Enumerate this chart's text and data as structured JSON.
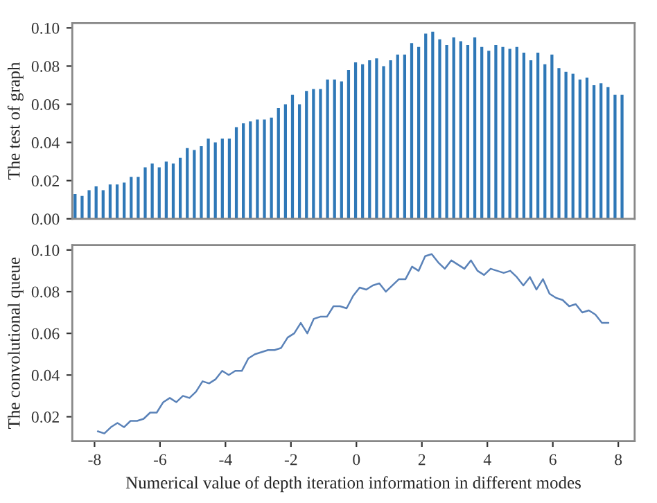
{
  "chart_data": [
    {
      "type": "bar",
      "ylabel": "The test of graph",
      "categories": [
        null,
        null,
        null,
        null,
        null,
        null,
        null,
        null,
        null,
        null,
        null,
        null,
        null,
        null,
        null,
        null,
        null,
        null,
        null,
        null,
        null,
        null,
        null,
        null,
        null,
        null,
        null,
        null,
        null,
        null,
        null,
        null,
        null,
        null,
        null,
        null,
        null,
        null,
        null,
        null,
        null,
        null,
        null,
        null,
        null,
        null,
        null,
        null,
        null,
        null,
        null,
        null,
        null,
        null,
        null,
        null,
        null,
        null,
        null,
        null,
        null,
        null,
        null,
        null,
        null,
        null,
        null,
        null,
        null,
        null,
        null,
        null,
        null,
        null,
        null,
        null,
        null,
        null,
        null
      ],
      "values": [
        0.013,
        0.012,
        0.015,
        0.017,
        0.015,
        0.018,
        0.018,
        0.019,
        0.022,
        0.022,
        0.027,
        0.029,
        0.027,
        0.03,
        0.029,
        0.032,
        0.037,
        0.036,
        0.038,
        0.042,
        0.04,
        0.042,
        0.042,
        0.048,
        0.05,
        0.051,
        0.052,
        0.052,
        0.053,
        0.058,
        0.06,
        0.065,
        0.06,
        0.067,
        0.068,
        0.068,
        0.073,
        0.073,
        0.072,
        0.078,
        0.082,
        0.081,
        0.083,
        0.084,
        0.08,
        0.083,
        0.086,
        0.086,
        0.092,
        0.09,
        0.097,
        0.098,
        0.094,
        0.091,
        0.095,
        0.093,
        0.091,
        0.095,
        0.09,
        0.088,
        0.091,
        0.09,
        0.089,
        0.09,
        0.087,
        0.083,
        0.087,
        0.081,
        0.086,
        0.079,
        0.077,
        0.076,
        0.073,
        0.074,
        0.07,
        0.071,
        0.069,
        0.065,
        0.065
      ],
      "color": "#2f78b7",
      "ylim": [
        0,
        0.1025
      ],
      "yticks": [
        {
          "value": 0,
          "label": "0.00"
        },
        {
          "value": 0.02,
          "label": "0.02"
        },
        {
          "value": 0.04,
          "label": "0.04"
        },
        {
          "value": 0.06,
          "label": "0.06"
        },
        {
          "value": 0.08,
          "label": "0.08"
        },
        {
          "value": 0.1,
          "label": "0.10"
        }
      ],
      "tick_labels": "y",
      "grid": false,
      "legend": false
    },
    {
      "type": "line",
      "xlabel": "Numerical value of depth iteration information in different modes",
      "ylabel": "The convolutional queue",
      "x": [
        -7.9,
        -7.7,
        -7.5,
        -7.3,
        -7.1,
        -6.9,
        -6.7,
        -6.5,
        -6.3,
        -6.1,
        -5.9,
        -5.7,
        -5.5,
        -5.3,
        -5.1,
        -4.9,
        -4.7,
        -4.5,
        -4.3,
        -4.1,
        -3.9,
        -3.7,
        -3.5,
        -3.3,
        -3.1,
        -2.9,
        -2.7,
        -2.5,
        -2.3,
        -2.1,
        -1.9,
        -1.7,
        -1.5,
        -1.3,
        -1.1,
        -0.9,
        -0.7,
        -0.5,
        -0.3,
        -0.1,
        0.1,
        0.3,
        0.5,
        0.7,
        0.9,
        1.1,
        1.3,
        1.5,
        1.7,
        1.9,
        2.1,
        2.3,
        2.5,
        2.7,
        2.9,
        3.1,
        3.3,
        3.5,
        3.7,
        3.9,
        4.1,
        4.3,
        4.5,
        4.7,
        4.9,
        5.1,
        5.3,
        5.5,
        5.7,
        5.9,
        6.1,
        6.3,
        6.5,
        6.7,
        6.9,
        7.1,
        7.3,
        7.5,
        7.7
      ],
      "values": [
        0.013,
        0.012,
        0.015,
        0.017,
        0.015,
        0.018,
        0.018,
        0.019,
        0.022,
        0.022,
        0.027,
        0.029,
        0.027,
        0.03,
        0.029,
        0.032,
        0.037,
        0.036,
        0.038,
        0.042,
        0.04,
        0.042,
        0.042,
        0.048,
        0.05,
        0.051,
        0.052,
        0.052,
        0.053,
        0.058,
        0.06,
        0.065,
        0.06,
        0.067,
        0.068,
        0.068,
        0.073,
        0.073,
        0.072,
        0.078,
        0.082,
        0.081,
        0.083,
        0.084,
        0.08,
        0.083,
        0.086,
        0.086,
        0.092,
        0.09,
        0.097,
        0.098,
        0.094,
        0.091,
        0.095,
        0.093,
        0.091,
        0.095,
        0.09,
        0.088,
        0.091,
        0.09,
        0.089,
        0.09,
        0.087,
        0.083,
        0.087,
        0.081,
        0.086,
        0.079,
        0.077,
        0.076,
        0.073,
        0.074,
        0.07,
        0.071,
        0.069,
        0.065,
        0.065
      ],
      "color": "#5a82b8",
      "xlim": [
        -8.68,
        8.5
      ],
      "xticks": [
        -8,
        -6,
        -4,
        -2,
        0,
        2,
        4,
        6,
        8
      ],
      "ylim": [
        0.0083,
        0.1024
      ],
      "yticks": [
        {
          "value": 0.02,
          "label": "0.02"
        },
        {
          "value": 0.04,
          "label": "0.04"
        },
        {
          "value": 0.06,
          "label": "0.06"
        },
        {
          "value": 0.08,
          "label": "0.08"
        },
        {
          "value": 0.1,
          "label": "0.10"
        }
      ],
      "grid": false,
      "legend": false,
      "marker": "none",
      "line_style": "solid"
    }
  ]
}
